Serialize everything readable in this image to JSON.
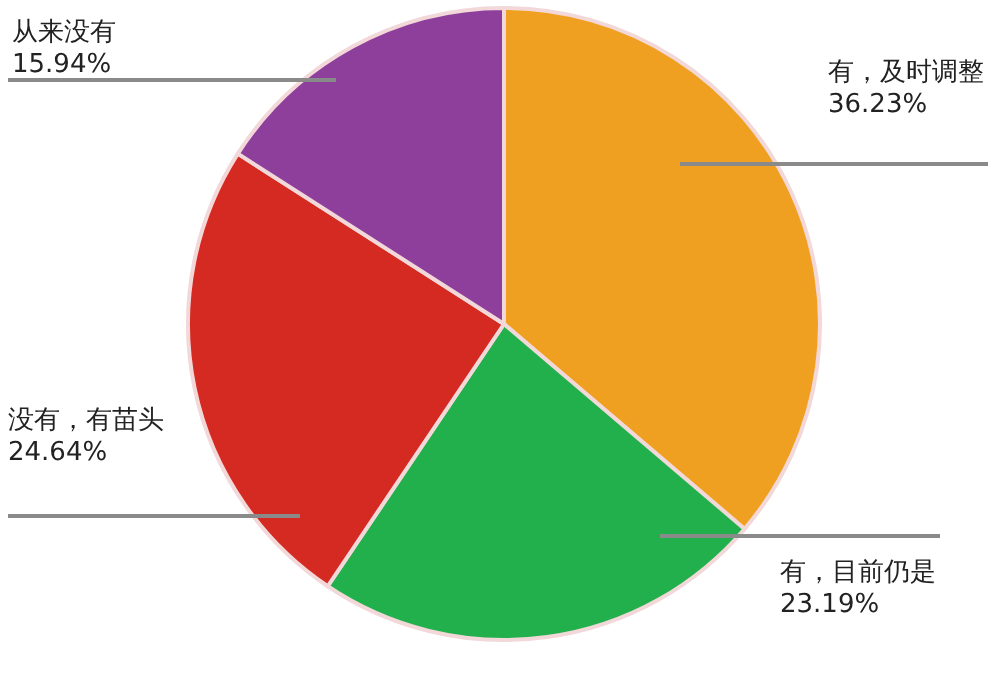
{
  "chart_data": {
    "type": "pie",
    "categories": [
      "有，及时调整",
      "有，目前仍是",
      "没有，有苗头",
      "从来没有"
    ],
    "values": [
      36.23,
      23.19,
      24.64,
      15.94
    ],
    "colors": [
      "#f0a020",
      "#22b04c",
      "#d42a22",
      "#8e3f9c"
    ],
    "value_labels": [
      "36.23%",
      "23.19%",
      "24.64%",
      "15.94%"
    ]
  }
}
